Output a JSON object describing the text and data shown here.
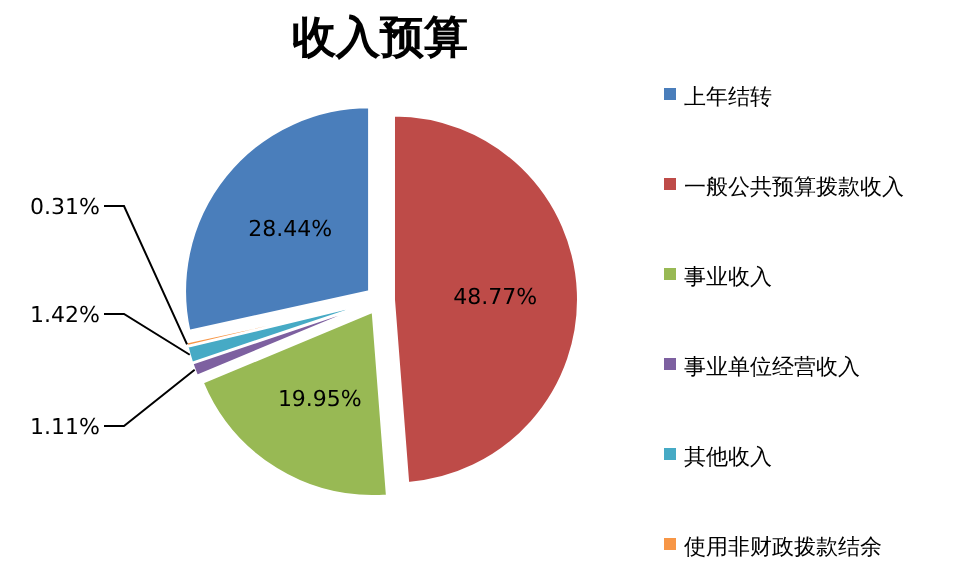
{
  "chart_data": {
    "type": "pie",
    "title": "收入预算",
    "categories": [
      "上年结转",
      "一般公共预算拨款收入",
      "事业收入",
      "事业单位经营收入",
      "其他收入",
      "使用非财政拨款结余"
    ],
    "values": [
      28.44,
      48.77,
      19.95,
      1.11,
      1.42,
      0.31
    ],
    "value_labels": [
      "28.44%",
      "48.77%",
      "19.95%",
      "1.11%",
      "1.42%",
      "0.31%"
    ],
    "colors": [
      "#4a7ebb",
      "#be4b48",
      "#98b954",
      "#7d60a0",
      "#46aac5",
      "#f79646"
    ],
    "legend": "right"
  }
}
